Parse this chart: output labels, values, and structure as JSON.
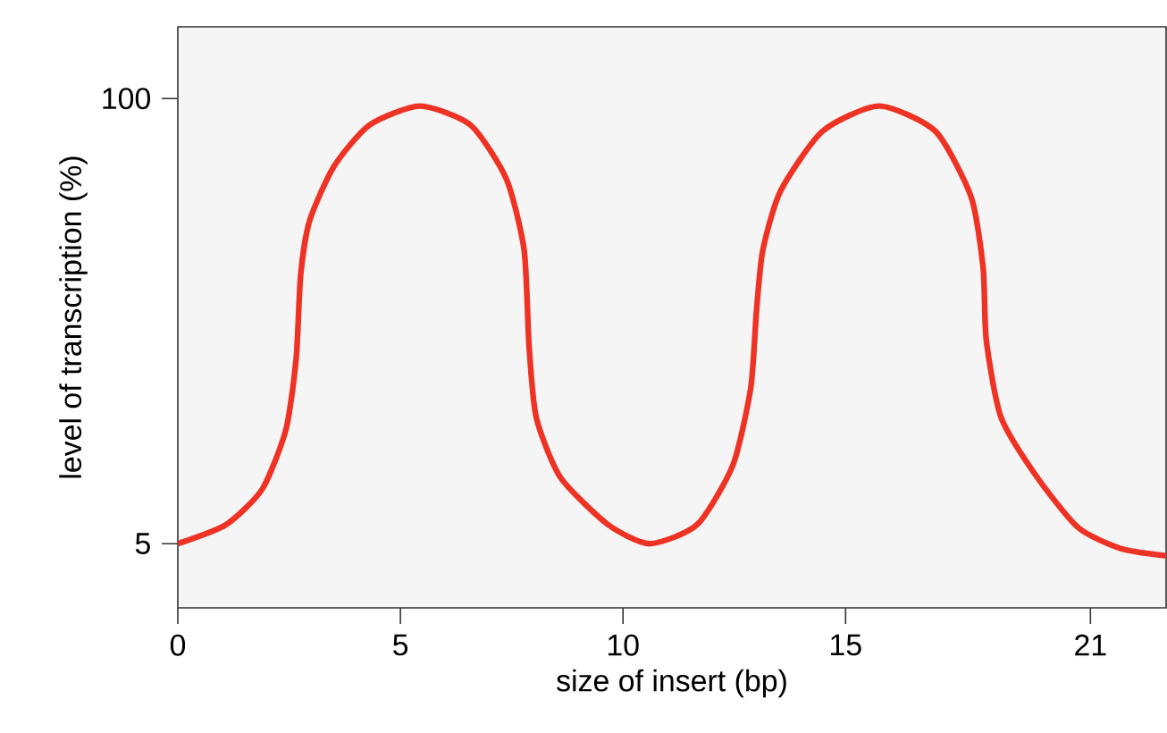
{
  "chart_data": {
    "type": "line",
    "xlabel": "size of insert (bp)",
    "ylabel": "level of transcription (%)",
    "xlim": [
      0,
      22.2
    ],
    "ylim": [
      -8.7,
      115.3
    ],
    "xticks": [
      0,
      5,
      10,
      15,
      {
        "value": 20.5,
        "label": "21"
      }
    ],
    "yticks": [
      5,
      100
    ],
    "series": [
      {
        "color": "#ee3224",
        "x": [
          0,
          1.09,
          1.9,
          2.43,
          2.66,
          2.76,
          2.96,
          3.5,
          4.3,
          5.44,
          6.58,
          7.38,
          7.78,
          7.89,
          8.05,
          8.59,
          9.66,
          10.6,
          11.67,
          12.47,
          12.87,
          13.0,
          13.14,
          13.54,
          14.48,
          15.75,
          17.02,
          17.82,
          18.09,
          18.16,
          18.49,
          19.3,
          20.23,
          21.17,
          22.2
        ],
        "values": [
          5,
          9.1,
          16.7,
          29.4,
          44.7,
          62.5,
          73.9,
          85.4,
          94.3,
          98.4,
          94.3,
          82.8,
          67.6,
          47.2,
          32,
          19.2,
          9.1,
          5,
          9.1,
          21.8,
          38.3,
          54.9,
          67.6,
          80.3,
          93,
          98.4,
          93,
          79,
          63.8,
          48.5,
          32,
          19.2,
          8.4,
          4,
          2.4
        ]
      }
    ],
    "grid": false,
    "marker": "none",
    "line_style": "solid"
  }
}
